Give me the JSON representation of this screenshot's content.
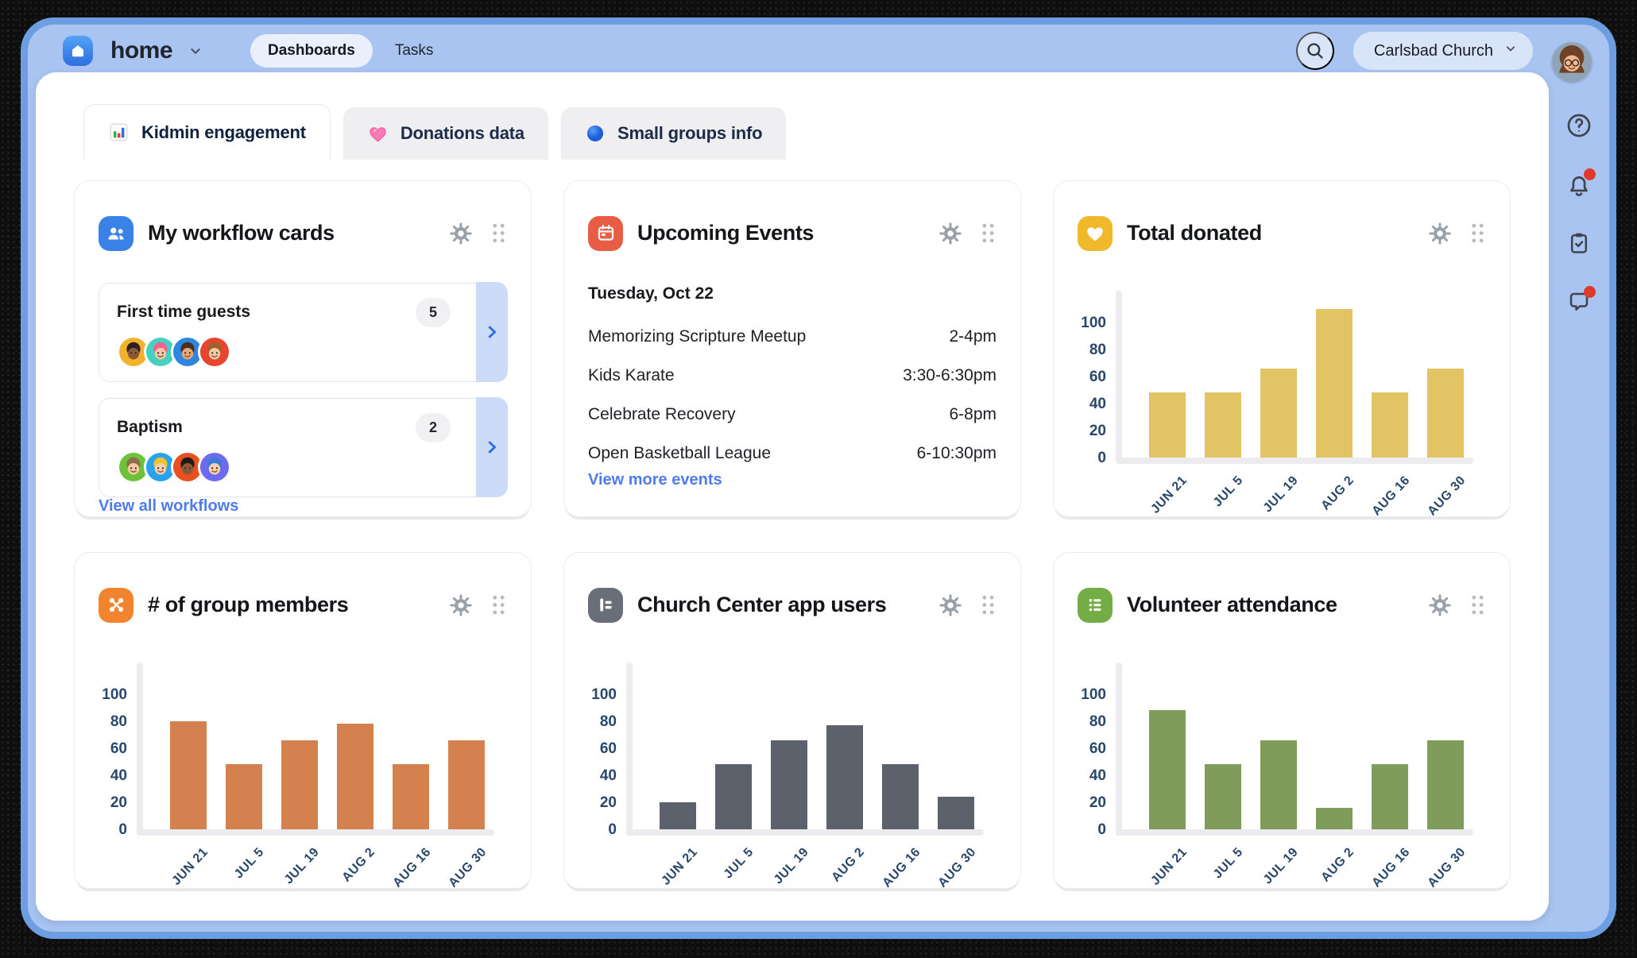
{
  "topbar": {
    "app_name": "home",
    "app_menu_icon": "home-logo-icon",
    "app_menu_chevron": "chevron-down-icon",
    "nav": [
      {
        "label": "Dashboards",
        "active": true
      },
      {
        "label": "Tasks",
        "active": false
      }
    ],
    "search_icon": "search-icon",
    "org_selector": {
      "label": "Carlsbad Church",
      "icon": "chevron-down-icon"
    },
    "avatar": "user-avatar"
  },
  "rail": {
    "badge_color": "#e0392b",
    "icons": [
      {
        "name": "help-icon",
        "badge": false
      },
      {
        "name": "notifications-bell-icon",
        "badge": true
      },
      {
        "name": "tasks-clipboard-icon",
        "badge": false
      },
      {
        "name": "chat-bubble-icon",
        "badge": true
      }
    ]
  },
  "tabs": [
    {
      "label": "Kidmin engagement",
      "icon": "bar-chart-icon",
      "active": true
    },
    {
      "label": "Donations data",
      "icon": "pink-heart-icon",
      "active": false
    },
    {
      "label": "Small groups info",
      "icon": "blue-circle-icon",
      "active": false
    }
  ],
  "workflows_card": {
    "title": "My workflow cards",
    "icon": "people-icon",
    "icon_color": "#3b82e8",
    "controls": [
      "settings-gear-icon",
      "drag-handle-icon"
    ],
    "items": [
      {
        "name": "First time guests",
        "count": "5",
        "avatars": [
          {
            "bg": "#f2b32a",
            "skin": "#8d5a3b",
            "hair": "#2c2320"
          },
          {
            "bg": "#45d0c0",
            "skin": "#f6c7a5",
            "hair": "#f06292"
          },
          {
            "bg": "#2f86e0",
            "skin": "#e8a873",
            "hair": "#4a2f23"
          },
          {
            "bg": "#e8442e",
            "skin": "#f6c9a2",
            "hair": "#a0622d"
          }
        ]
      },
      {
        "name": "Baptism",
        "count": "2",
        "avatars": [
          {
            "bg": "#6cc238",
            "skin": "#f6c9a2",
            "hair": "#8d6e4a"
          },
          {
            "bg": "#29a3f0",
            "skin": "#f8cfae",
            "hair": "#f2c12e"
          },
          {
            "bg": "#e8501f",
            "skin": "#8d5a3b",
            "hair": "#1f1a17"
          },
          {
            "bg": "#6b6bf0",
            "skin": "#f8cfae",
            "hair": "#3a7bd5"
          }
        ]
      }
    ],
    "link_label": "View all workflows"
  },
  "events_card": {
    "title": "Upcoming Events",
    "icon": "calendar-icon",
    "icon_color": "#e85d45",
    "controls": [
      "settings-gear-icon",
      "drag-handle-icon"
    ],
    "date": "Tuesday, Oct 22",
    "events": [
      {
        "name": "Memorizing Scripture Meetup",
        "time": "2-4pm"
      },
      {
        "name": "Kids Karate",
        "time": "3:30-6:30pm"
      },
      {
        "name": "Celebrate Recovery",
        "time": "6-8pm"
      },
      {
        "name": "Open Basketball League",
        "time": "6-10:30pm"
      }
    ],
    "link_label": "View more events"
  },
  "chart_data": [
    {
      "type": "bar",
      "title": "Total donated",
      "icon": "heart-icon",
      "icon_color": "#f0b92c",
      "categories": [
        "JUN 21",
        "JUL 5",
        "JUL 19",
        "AUG 2",
        "AUG 16",
        "AUG 30"
      ],
      "values": [
        48,
        48,
        66,
        110,
        48,
        66
      ],
      "color": "#e3c464",
      "xlabel": "",
      "ylabel": "",
      "ylim": [
        0,
        115
      ],
      "yticks": [
        0,
        20,
        40,
        60,
        80,
        100
      ],
      "grid": false,
      "legend": false
    },
    {
      "type": "bar",
      "title": "# of group members",
      "icon": "groups-icon",
      "icon_color": "#f2842f",
      "categories": [
        "JUN 21",
        "JUL 5",
        "JUL 19",
        "AUG 2",
        "AUG 16",
        "AUG 30"
      ],
      "values": [
        80,
        48,
        66,
        78,
        48,
        66
      ],
      "color": "#d4804f",
      "xlabel": "",
      "ylabel": "",
      "ylim": [
        0,
        115
      ],
      "yticks": [
        0,
        20,
        40,
        60,
        80,
        100
      ],
      "grid": false,
      "legend": false
    },
    {
      "type": "bar",
      "title": "Church Center app users",
      "icon": "church-center-icon",
      "icon_color": "#6a6e78",
      "categories": [
        "JUN 21",
        "JUL 5",
        "JUL 19",
        "AUG 2",
        "AUG 16",
        "AUG 30"
      ],
      "values": [
        20,
        48,
        66,
        77,
        48,
        24
      ],
      "color": "#5d616b",
      "xlabel": "",
      "ylabel": "",
      "ylim": [
        0,
        115
      ],
      "yticks": [
        0,
        20,
        40,
        60,
        80,
        100
      ],
      "grid": false,
      "legend": false
    },
    {
      "type": "bar",
      "title": "Volunteer attendance",
      "icon": "list-icon",
      "icon_color": "#74ad46",
      "categories": [
        "JUN 21",
        "JUL 5",
        "JUL 19",
        "AUG 2",
        "AUG 16",
        "AUG 30"
      ],
      "values": [
        88,
        48,
        66,
        16,
        48,
        66
      ],
      "color": "#7f9c5b",
      "xlabel": "",
      "ylabel": "",
      "ylim": [
        0,
        115
      ],
      "yticks": [
        0,
        20,
        40,
        60,
        80,
        100
      ],
      "grid": false,
      "legend": false
    }
  ],
  "colors": {
    "topbar_bg": "#a9c4f0",
    "window_frame": "#6d9ee2",
    "link": "#4f7bf0",
    "axis": "#ececee",
    "tick_text": "#29476b",
    "workflow_strip": "#ccdbf8",
    "workflow_chevron": "#2b6fe3",
    "badge_dot": "#e0392b"
  }
}
